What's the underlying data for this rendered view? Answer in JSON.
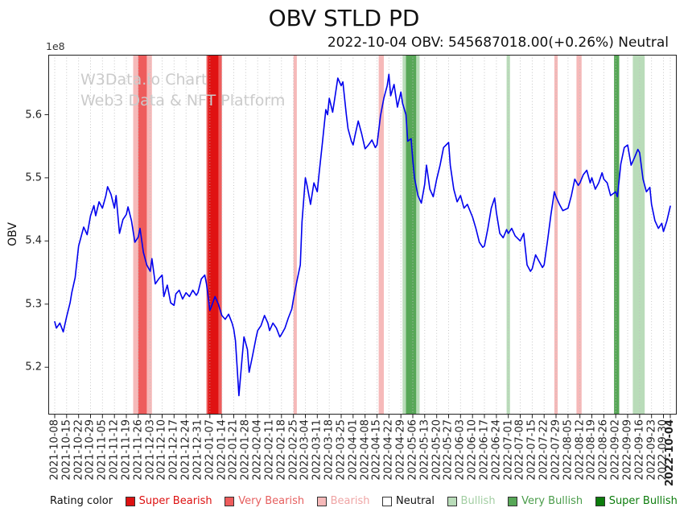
{
  "page": {
    "title": "OBV STLD PD",
    "subtitle": "2022-10-04 OBV: 545687018.00(+0.26%) Neutral",
    "watermark_line1": "W3Data.io Chart",
    "watermark_line2": "Web3 Data & NFT Platform"
  },
  "current_reading": {
    "date": "2022-10-04",
    "obv": "545687018.00",
    "change_pct": "+0.26%",
    "rating": "Neutral"
  },
  "legend": {
    "label": "Rating color",
    "items": [
      {
        "name": "Super Bearish",
        "color": "#dd1111",
        "text_color": "#dd1111"
      },
      {
        "name": "Very Bearish",
        "color": "#ee5c5c",
        "text_color": "#e65f5f"
      },
      {
        "name": "Bearish",
        "color": "#f6b9b9",
        "text_color": "#efa5a5"
      },
      {
        "name": "Neutral",
        "color": "#ffffff",
        "text_color": "#111111"
      },
      {
        "name": "Bullish",
        "color": "#b9dcb9",
        "text_color": "#a2cea2"
      },
      {
        "name": "Very Bullish",
        "color": "#57a757",
        "text_color": "#4a9c4a"
      },
      {
        "name": "Super Bullish",
        "color": "#0c7c0c",
        "text_color": "#0c7c0c"
      }
    ]
  },
  "chart_data": {
    "type": "line",
    "title": "OBV STLD PD",
    "ylabel": "OBV",
    "y_multiplier_label": "1e8",
    "y_unit": "1e8",
    "x_unit": "days_since_2021-10-08",
    "y_ticks": [
      "5.2",
      "5.3",
      "5.4",
      "5.5",
      "5.6"
    ],
    "ylim_units": [
      5.125,
      5.695
    ],
    "x_start_date": "2021-10-08",
    "x_end_date": "2022-10-04",
    "grid": "vertical-dotted",
    "line_color": "#0000ee",
    "x_tick_labels": [
      "2021-10-08",
      "2021-10-15",
      "2021-10-22",
      "2021-10-29",
      "2021-11-05",
      "2021-11-12",
      "2021-11-19",
      "2021-11-26",
      "2021-12-03",
      "2021-12-10",
      "2021-12-17",
      "2021-12-24",
      "2021-12-31",
      "2022-01-07",
      "2022-01-14",
      "2022-01-21",
      "2022-01-28",
      "2022-02-04",
      "2022-02-11",
      "2022-02-18",
      "2022-02-25",
      "2022-03-04",
      "2022-03-11",
      "2022-03-18",
      "2022-03-25",
      "2022-04-01",
      "2022-04-08",
      "2022-04-15",
      "2022-04-22",
      "2022-04-29",
      "2022-05-06",
      "2022-05-13",
      "2022-05-20",
      "2022-05-27",
      "2022-06-03",
      "2022-06-10",
      "2022-06-17",
      "2022-06-24",
      "2022-07-01",
      "2022-07-08",
      "2022-07-15",
      "2022-07-22",
      "2022-07-29",
      "2022-08-05",
      "2022-08-12",
      "2022-08-19",
      "2022-08-26",
      "2022-09-02",
      "2022-09-09",
      "2022-09-16",
      "2022-09-23",
      "2022-09-30",
      "2022-10-04"
    ],
    "rating_colors": {
      "Super Bearish": "#e01212",
      "Very Bearish": "#ee5c5c",
      "Bearish": "#f6b9b9",
      "Neutral": "#ffffff",
      "Bullish": "#b9dcb9",
      "Very Bullish": "#57a757",
      "Super Bullish": "#0c7c0c"
    },
    "rating_bands": [
      {
        "start": "2021-11-23",
        "end": "2021-12-04",
        "rating": "Bearish"
      },
      {
        "start": "2021-11-26",
        "end": "2021-12-01",
        "rating": "Very Bearish"
      },
      {
        "start": "2022-01-05",
        "end": "2022-01-14",
        "rating": "Very Bearish"
      },
      {
        "start": "2022-01-06",
        "end": "2022-01-12",
        "rating": "Super Bearish"
      },
      {
        "start": "2022-02-25",
        "end": "2022-02-27",
        "rating": "Bearish"
      },
      {
        "start": "2022-04-16",
        "end": "2022-04-19",
        "rating": "Bearish"
      },
      {
        "start": "2022-04-30",
        "end": "2022-05-10",
        "rating": "Bullish"
      },
      {
        "start": "2022-05-02",
        "end": "2022-05-08",
        "rating": "Very Bullish"
      },
      {
        "start": "2022-06-30",
        "end": "2022-07-02",
        "rating": "Bullish"
      },
      {
        "start": "2022-07-28",
        "end": "2022-07-30",
        "rating": "Bearish"
      },
      {
        "start": "2022-08-10",
        "end": "2022-08-13",
        "rating": "Bearish"
      },
      {
        "start": "2022-09-01",
        "end": "2022-09-04",
        "rating": "Very Bullish"
      },
      {
        "start": "2022-09-12",
        "end": "2022-09-19",
        "rating": "Bullish"
      }
    ],
    "series": [
      {
        "name": "OBV",
        "unit_multiplier": 100000000,
        "points": [
          [
            0,
            5.272
          ],
          [
            1,
            5.262
          ],
          [
            3,
            5.27
          ],
          [
            5,
            5.256
          ],
          [
            7,
            5.28
          ],
          [
            9,
            5.302
          ],
          [
            10,
            5.318
          ],
          [
            12,
            5.342
          ],
          [
            14,
            5.392
          ],
          [
            15,
            5.402
          ],
          [
            17,
            5.422
          ],
          [
            19,
            5.41
          ],
          [
            21,
            5.44
          ],
          [
            23,
            5.456
          ],
          [
            24,
            5.44
          ],
          [
            26,
            5.462
          ],
          [
            28,
            5.452
          ],
          [
            30,
            5.472
          ],
          [
            31,
            5.486
          ],
          [
            33,
            5.474
          ],
          [
            35,
            5.452
          ],
          [
            36,
            5.472
          ],
          [
            38,
            5.412
          ],
          [
            40,
            5.434
          ],
          [
            42,
            5.442
          ],
          [
            43,
            5.454
          ],
          [
            45,
            5.432
          ],
          [
            47,
            5.398
          ],
          [
            49,
            5.406
          ],
          [
            50,
            5.42
          ],
          [
            52,
            5.382
          ],
          [
            54,
            5.362
          ],
          [
            56,
            5.352
          ],
          [
            57,
            5.372
          ],
          [
            59,
            5.332
          ],
          [
            61,
            5.34
          ],
          [
            63,
            5.346
          ],
          [
            64,
            5.312
          ],
          [
            66,
            5.33
          ],
          [
            68,
            5.302
          ],
          [
            70,
            5.298
          ],
          [
            71,
            5.316
          ],
          [
            73,
            5.322
          ],
          [
            75,
            5.308
          ],
          [
            77,
            5.318
          ],
          [
            79,
            5.312
          ],
          [
            81,
            5.322
          ],
          [
            83,
            5.314
          ],
          [
            84,
            5.318
          ],
          [
            86,
            5.34
          ],
          [
            88,
            5.346
          ],
          [
            89,
            5.332
          ],
          [
            91,
            5.29
          ],
          [
            92,
            5.297
          ],
          [
            94,
            5.312
          ],
          [
            96,
            5.3
          ],
          [
            98,
            5.282
          ],
          [
            100,
            5.276
          ],
          [
            102,
            5.284
          ],
          [
            104,
            5.27
          ],
          [
            105,
            5.26
          ],
          [
            106,
            5.242
          ],
          [
            107,
            5.2
          ],
          [
            108,
            5.155
          ],
          [
            110,
            5.218
          ],
          [
            111,
            5.248
          ],
          [
            113,
            5.228
          ],
          [
            114,
            5.192
          ],
          [
            116,
            5.218
          ],
          [
            118,
            5.246
          ],
          [
            119,
            5.258
          ],
          [
            121,
            5.266
          ],
          [
            123,
            5.282
          ],
          [
            125,
            5.27
          ],
          [
            126,
            5.258
          ],
          [
            128,
            5.27
          ],
          [
            130,
            5.262
          ],
          [
            132,
            5.248
          ],
          [
            133,
            5.252
          ],
          [
            135,
            5.262
          ],
          [
            137,
            5.278
          ],
          [
            139,
            5.292
          ],
          [
            140,
            5.308
          ],
          [
            142,
            5.336
          ],
          [
            144,
            5.362
          ],
          [
            145,
            5.43
          ],
          [
            147,
            5.5
          ],
          [
            148,
            5.488
          ],
          [
            150,
            5.458
          ],
          [
            152,
            5.492
          ],
          [
            154,
            5.478
          ],
          [
            155,
            5.506
          ],
          [
            157,
            5.556
          ],
          [
            159,
            5.608
          ],
          [
            160,
            5.6
          ],
          [
            161,
            5.626
          ],
          [
            163,
            5.604
          ],
          [
            165,
            5.64
          ],
          [
            166,
            5.658
          ],
          [
            168,
            5.646
          ],
          [
            169,
            5.652
          ],
          [
            171,
            5.6
          ],
          [
            172,
            5.578
          ],
          [
            174,
            5.558
          ],
          [
            175,
            5.552
          ],
          [
            176,
            5.566
          ],
          [
            178,
            5.59
          ],
          [
            180,
            5.57
          ],
          [
            182,
            5.546
          ],
          [
            184,
            5.552
          ],
          [
            186,
            5.56
          ],
          [
            188,
            5.548
          ],
          [
            189,
            5.552
          ],
          [
            191,
            5.598
          ],
          [
            193,
            5.626
          ],
          [
            195,
            5.646
          ],
          [
            196,
            5.664
          ],
          [
            197,
            5.63
          ],
          [
            199,
            5.648
          ],
          [
            201,
            5.612
          ],
          [
            203,
            5.636
          ],
          [
            204,
            5.618
          ],
          [
            206,
            5.6
          ],
          [
            207,
            5.558
          ],
          [
            209,
            5.562
          ],
          [
            210,
            5.528
          ],
          [
            211,
            5.5
          ],
          [
            213,
            5.472
          ],
          [
            215,
            5.46
          ],
          [
            217,
            5.49
          ],
          [
            218,
            5.52
          ],
          [
            220,
            5.482
          ],
          [
            222,
            5.47
          ],
          [
            224,
            5.498
          ],
          [
            226,
            5.52
          ],
          [
            228,
            5.548
          ],
          [
            231,
            5.556
          ],
          [
            232,
            5.52
          ],
          [
            234,
            5.482
          ],
          [
            236,
            5.462
          ],
          [
            238,
            5.472
          ],
          [
            240,
            5.452
          ],
          [
            242,
            5.458
          ],
          [
            245,
            5.438
          ],
          [
            247,
            5.42
          ],
          [
            249,
            5.398
          ],
          [
            251,
            5.39
          ],
          [
            252,
            5.392
          ],
          [
            254,
            5.42
          ],
          [
            256,
            5.452
          ],
          [
            258,
            5.468
          ],
          [
            259,
            5.445
          ],
          [
            261,
            5.412
          ],
          [
            263,
            5.405
          ],
          [
            265,
            5.418
          ],
          [
            266,
            5.412
          ],
          [
            268,
            5.42
          ],
          [
            270,
            5.408
          ],
          [
            273,
            5.4
          ],
          [
            275,
            5.412
          ],
          [
            277,
            5.362
          ],
          [
            279,
            5.352
          ],
          [
            280,
            5.356
          ],
          [
            282,
            5.378
          ],
          [
            284,
            5.368
          ],
          [
            286,
            5.358
          ],
          [
            287,
            5.362
          ],
          [
            289,
            5.4
          ],
          [
            291,
            5.442
          ],
          [
            293,
            5.478
          ],
          [
            294,
            5.47
          ],
          [
            296,
            5.458
          ],
          [
            298,
            5.448
          ],
          [
            301,
            5.452
          ],
          [
            303,
            5.472
          ],
          [
            305,
            5.498
          ],
          [
            307,
            5.488
          ],
          [
            308,
            5.492
          ],
          [
            310,
            5.505
          ],
          [
            312,
            5.512
          ],
          [
            314,
            5.492
          ],
          [
            315,
            5.5
          ],
          [
            317,
            5.482
          ],
          [
            319,
            5.492
          ],
          [
            321,
            5.508
          ],
          [
            322,
            5.498
          ],
          [
            324,
            5.492
          ],
          [
            326,
            5.472
          ],
          [
            329,
            5.478
          ],
          [
            330,
            5.47
          ],
          [
            332,
            5.522
          ],
          [
            334,
            5.548
          ],
          [
            336,
            5.552
          ],
          [
            338,
            5.52
          ],
          [
            340,
            5.532
          ],
          [
            342,
            5.545
          ],
          [
            343,
            5.54
          ],
          [
            345,
            5.498
          ],
          [
            347,
            5.478
          ],
          [
            349,
            5.485
          ],
          [
            350,
            5.458
          ],
          [
            352,
            5.432
          ],
          [
            354,
            5.42
          ],
          [
            356,
            5.428
          ],
          [
            357,
            5.415
          ],
          [
            359,
            5.432
          ],
          [
            361,
            5.455
          ]
        ]
      }
    ]
  }
}
